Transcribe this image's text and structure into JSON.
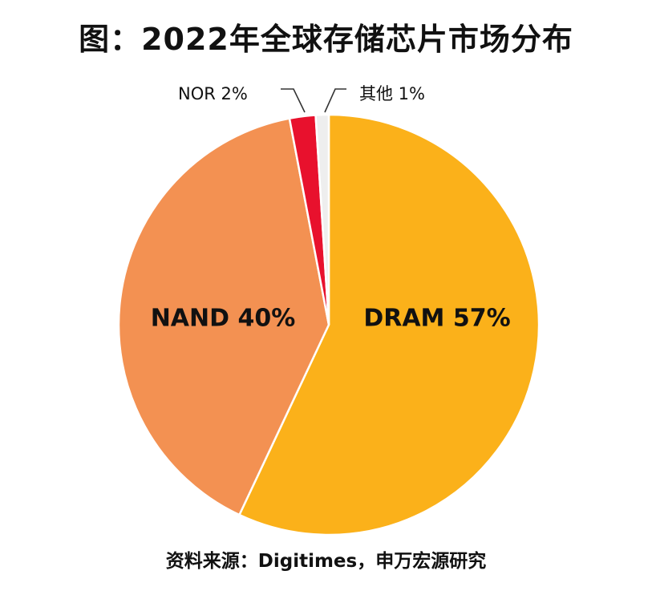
{
  "chart_data": {
    "type": "pie",
    "title": "图：2022年全球存储芯片市场分布",
    "slices": [
      {
        "name": "DRAM",
        "value": 57,
        "label": "DRAM 57%",
        "color": "#FBB11A"
      },
      {
        "name": "NAND",
        "value": 40,
        "label": "NAND 40%",
        "color": "#F39152"
      },
      {
        "name": "NOR",
        "value": 2,
        "label": "NOR 2%",
        "color": "#E8112D"
      },
      {
        "name": "其他",
        "value": 1,
        "label": "其他 1%",
        "color": "#EEEEEE"
      }
    ],
    "start_angle": "12 o'clock",
    "direction": "clockwise",
    "legend": "none"
  },
  "source": "资料来源：Digitimes，申万宏源研究"
}
